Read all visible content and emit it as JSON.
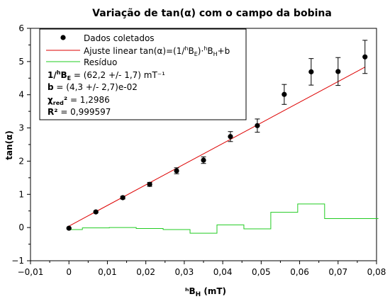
{
  "chart_data": {
    "type": "scatter",
    "title": "Variação de tan(α) com o campo da bobina",
    "xlabel": "ʰB_H (mT)",
    "ylabel": "tan(α)",
    "xlim": [
      -0.01,
      0.08
    ],
    "ylim": [
      -1,
      6
    ],
    "x_ticks": [
      "−0,01",
      "0",
      "0,01",
      "0,02",
      "0,03",
      "0,04",
      "0,05",
      "0,06",
      "0,07",
      "0,08"
    ],
    "y_ticks": [
      "−1",
      "0",
      "1",
      "2",
      "3",
      "4",
      "5",
      "6"
    ],
    "x_tick_values": [
      -0.01,
      0,
      0.01,
      0.02,
      0.03,
      0.04,
      0.05,
      0.06,
      0.07,
      0.08
    ],
    "y_tick_values": [
      -1,
      0,
      1,
      2,
      3,
      4,
      5,
      6
    ],
    "grid": false,
    "legend_position": "top-left",
    "series": [
      {
        "name": "Dados coletados",
        "kind": "points",
        "color": "#000000",
        "x": [
          0,
          0.007,
          0.014,
          0.021,
          0.028,
          0.035,
          0.042,
          0.049,
          0.056,
          0.063,
          0.07,
          0.077
        ],
        "y": [
          -0.02,
          0.47,
          0.9,
          1.3,
          1.71,
          2.03,
          2.74,
          3.07,
          4.01,
          4.69,
          4.7,
          5.14
        ],
        "yerr": [
          0.02,
          0.03,
          0.04,
          0.06,
          0.09,
          0.1,
          0.15,
          0.2,
          0.3,
          0.4,
          0.42,
          0.5
        ]
      },
      {
        "name": "Ajuste linear tan(α)=(1/ʰB_E)·ʰB_H+b",
        "kind": "line",
        "color": "#dd0000",
        "x": [
          0,
          0.077
        ],
        "y": [
          0.043,
          4.832
        ]
      },
      {
        "name": "Resíduo",
        "kind": "step",
        "color": "#22cc22",
        "x": [
          0,
          0.007,
          0.014,
          0.021,
          0.028,
          0.035,
          0.042,
          0.049,
          0.056,
          0.063,
          0.07,
          0.077
        ],
        "y": [
          -0.06,
          -0.01,
          0.0,
          -0.03,
          -0.06,
          -0.17,
          0.08,
          -0.04,
          0.46,
          0.71,
          0.27,
          0.27
        ]
      }
    ],
    "legend_stats": [
      {
        "label": "1/ʰB_E",
        "value": " = (62,2 +/- 1,7) mT⁻¹"
      },
      {
        "label": "b",
        "value": " = (4,3 +/- 2,7)e-02"
      },
      {
        "label": "χ_red²",
        "value": " = 1,2986"
      },
      {
        "label": "R²",
        "value": " = 0,999597"
      }
    ]
  }
}
